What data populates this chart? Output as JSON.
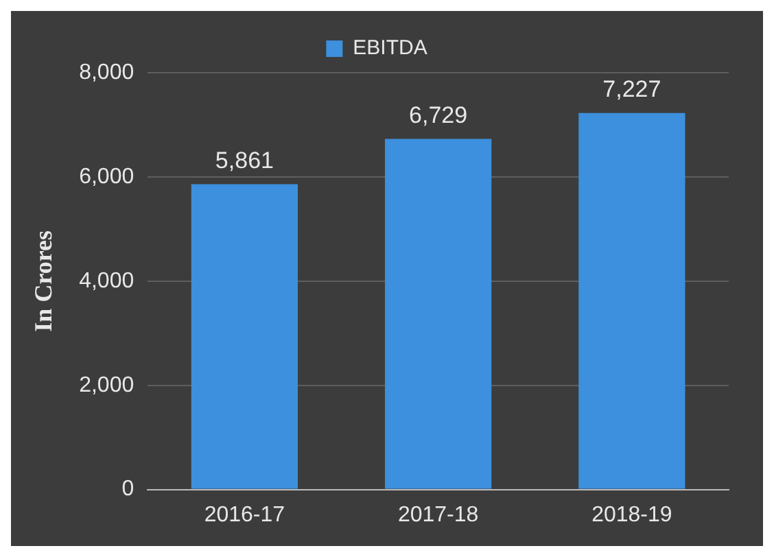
{
  "chart_data": {
    "type": "bar",
    "ylabel": "In Crores",
    "categories": [
      "2016-17",
      "2017-18",
      "2018-19"
    ],
    "series": [
      {
        "name": "EBITDA",
        "color": "#3d90dd",
        "values": [
          5861,
          6729,
          7227
        ]
      }
    ],
    "value_labels": [
      "5,861",
      "6,729",
      "7,227"
    ],
    "ylim": [
      0,
      8000
    ],
    "yticks": [
      {
        "value": 0,
        "label": "0"
      },
      {
        "value": 2000,
        "label": "2,000"
      },
      {
        "value": 4000,
        "label": "4,000"
      },
      {
        "value": 6000,
        "label": "6,000"
      },
      {
        "value": 8000,
        "label": "8,000"
      }
    ],
    "grid": "y",
    "legend": "top"
  }
}
